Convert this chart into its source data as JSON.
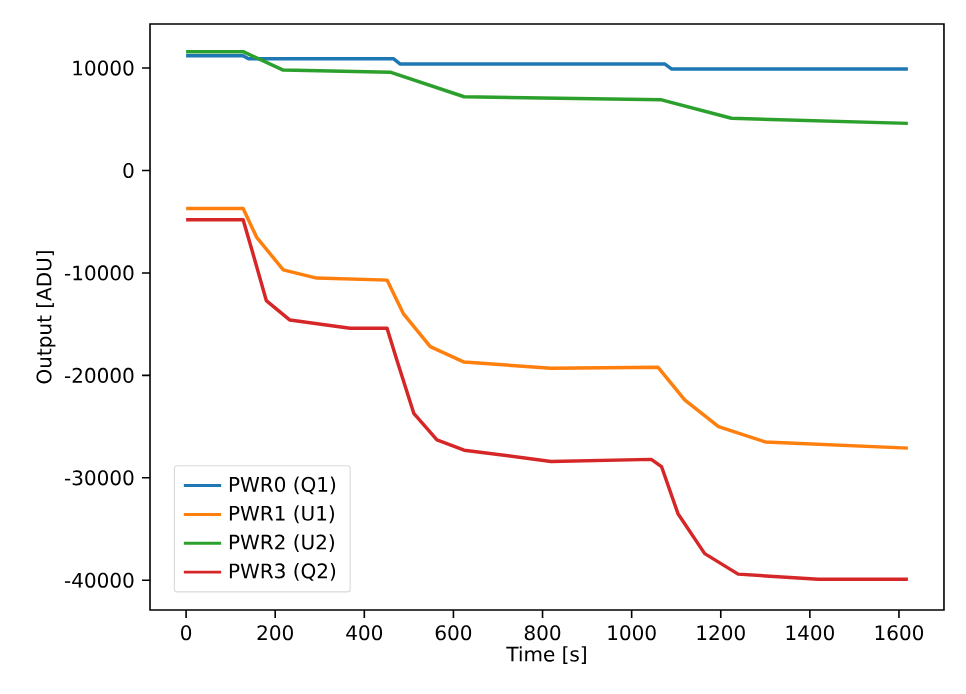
{
  "chart_data": {
    "type": "line",
    "xlabel": "Time [s]",
    "ylabel": "Output [ADU]",
    "xlim": [
      -81,
      1701
    ],
    "ylim": [
      -42900,
      14300
    ],
    "xticks": [
      0,
      200,
      400,
      600,
      800,
      1000,
      1200,
      1400,
      1600
    ],
    "yticks": [
      -40000,
      -30000,
      -20000,
      -10000,
      0,
      10000
    ],
    "legend": "bottom left",
    "grid": false,
    "line_style": "solid",
    "marker": "none",
    "series": [
      {
        "name": "PWR0 (Q1)",
        "color": "#1f77b4",
        "x": [
          0,
          128,
          140,
          466,
          480,
          1074,
          1090,
          1620
        ],
        "values": [
          11200,
          11200,
          10900,
          10900,
          10400,
          10400,
          9900,
          9900
        ]
      },
      {
        "name": "PWR1 (U1)",
        "color": "#ff7f0e",
        "x": [
          0,
          128,
          158,
          218,
          293,
          451,
          488,
          548,
          624,
          819,
          1059,
          1119,
          1195,
          1300,
          1620
        ],
        "values": [
          -3700,
          -3700,
          -6500,
          -9700,
          -10500,
          -10700,
          -14000,
          -17200,
          -18700,
          -19300,
          -19200,
          -22400,
          -25000,
          -26500,
          -27100
        ]
      },
      {
        "name": "PWR2 (U2)",
        "color": "#2ca02c",
        "x": [
          0,
          128,
          218,
          458,
          624,
          1067,
          1224,
          1620
        ],
        "values": [
          11600,
          11600,
          9800,
          9600,
          7200,
          6900,
          5100,
          4600
        ]
      },
      {
        "name": "PWR3 (Q2)",
        "color": "#d62728",
        "x": [
          0,
          128,
          150,
          180,
          233,
          368,
          451,
          473,
          511,
          563,
          624,
          819,
          1044,
          1067,
          1104,
          1164,
          1239,
          1419,
          1620
        ],
        "values": [
          -4800,
          -4800,
          -8100,
          -12700,
          -14600,
          -15400,
          -15400,
          -18500,
          -23700,
          -26300,
          -27300,
          -28400,
          -28200,
          -28900,
          -33500,
          -37400,
          -39400,
          -39900,
          -39900
        ]
      }
    ]
  }
}
